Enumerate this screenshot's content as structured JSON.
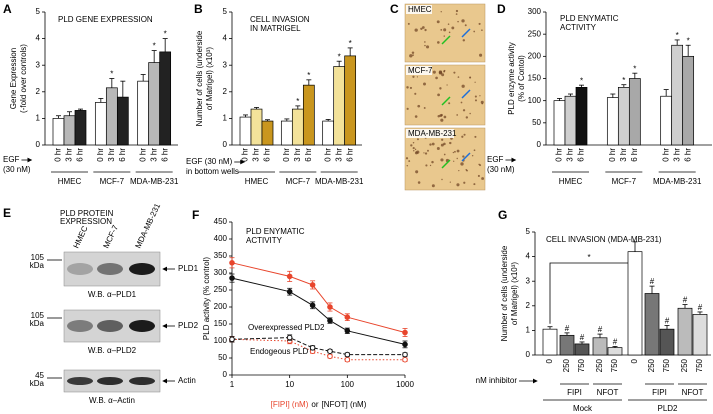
{
  "chart_data": [
    {
      "type": "bar",
      "panel": "A",
      "title": [
        "PLD GENE EXPRESSION"
      ],
      "y_label": [
        "Gene Expression",
        "(-fold over controls)"
      ],
      "x_label": [
        "EGF",
        "(30 nM)"
      ],
      "categories": [
        "HMEC",
        "MCF-7",
        "MDA-MB-231"
      ],
      "series": [
        {
          "name": "0 hr",
          "color": "#ffffff",
          "values": [
            1.0,
            1.6,
            2.4
          ],
          "errors": [
            0.1,
            0.15,
            0.25
          ],
          "significance": [
            null,
            null,
            null
          ]
        },
        {
          "name": "3 hr",
          "color": "#b8b8b8",
          "values": [
            1.1,
            2.15,
            3.1
          ],
          "errors": [
            0.15,
            0.35,
            0.45
          ],
          "significance": [
            null,
            "*",
            "*"
          ]
        },
        {
          "name": "6 hr",
          "color": "#222222",
          "values": [
            1.3,
            1.8,
            3.5
          ],
          "errors": [
            0.05,
            0.6,
            0.5
          ],
          "significance": [
            null,
            null,
            "*"
          ]
        }
      ],
      "ylim": [
        0,
        5
      ],
      "yticks": [
        0,
        1,
        2,
        3,
        4,
        5
      ]
    },
    {
      "type": "bar",
      "panel": "B",
      "title": [
        "CELL INVASION",
        "IN MATRIGEL"
      ],
      "y_label": [
        "Number of cells (underside",
        "of Matrigel) (x10³)"
      ],
      "x_label": [
        "EGF (30 nM)",
        "in bottom wells"
      ],
      "categories": [
        "HMEC",
        "MCF-7",
        "MDA-MB-231"
      ],
      "series": [
        {
          "name": "0 hr",
          "color": "#ffffff",
          "values": [
            1.05,
            0.9,
            0.9
          ],
          "errors": [
            0.08,
            0.08,
            0.06
          ],
          "significance": [
            null,
            null,
            null
          ]
        },
        {
          "name": "3 hr",
          "color": "#f3e29a",
          "values": [
            1.35,
            1.35,
            2.95
          ],
          "errors": [
            0.06,
            0.12,
            0.2
          ],
          "significance": [
            null,
            "*",
            "*"
          ]
        },
        {
          "name": "6 hr",
          "color": "#c9961e",
          "values": [
            0.9,
            2.25,
            3.35
          ],
          "errors": [
            0.05,
            0.2,
            0.3
          ],
          "significance": [
            null,
            "*",
            "*"
          ]
        }
      ],
      "ylim": [
        0,
        5
      ],
      "yticks": [
        0,
        1,
        2,
        3,
        4,
        5
      ]
    },
    {
      "type": "image",
      "panel": "C",
      "images": [
        "HMEC",
        "MCF-7",
        "MDA-MB-231"
      ]
    },
    {
      "type": "bar",
      "panel": "D",
      "title": [
        "PLD ENYMATIC",
        "ACTIVITY"
      ],
      "y_label": [
        "PLD enzyme activity",
        "(% of Contol)"
      ],
      "x_label": [
        "EGF",
        "(30 nM)"
      ],
      "categories": [
        "HMEC",
        "MCF-7",
        "MDA-MB-231"
      ],
      "series": [
        {
          "name": "0 hr",
          "color": "#ffffff",
          "values": [
            100,
            107,
            110
          ],
          "errors": [
            5,
            8,
            15
          ],
          "significance": [
            null,
            null,
            null
          ]
        },
        {
          "name": "3 hr",
          "color": "#cfcfcf",
          "values": [
            110,
            130,
            225
          ],
          "errors": [
            5,
            6,
            12
          ],
          "significance": [
            null,
            "*",
            "*"
          ]
        },
        {
          "name": "6 hr",
          "colors": [
            "#111111",
            "#a8a8a8",
            "#a8a8a8"
          ],
          "values": [
            130,
            150,
            200
          ],
          "errors": [
            5,
            12,
            25
          ],
          "significance": [
            "*",
            "*",
            "*"
          ]
        }
      ],
      "ylim": [
        0,
        300
      ],
      "yticks": [
        0,
        50,
        100,
        150,
        200,
        250,
        300
      ]
    },
    {
      "type": "blot",
      "panel": "E",
      "title": [
        "PLD PROTEIN",
        "EXPRESSION"
      ],
      "lanes": [
        "HMEC",
        "MCF-7",
        "MDA-MB-231"
      ],
      "blots": [
        {
          "marker": "105",
          "unit": "kDa",
          "target": "PLD1",
          "caption": "W.B. α–PLD1"
        },
        {
          "marker": "105",
          "unit": "kDa",
          "target": "PLD2",
          "caption": "W.B. α–PLD2"
        },
        {
          "marker": "45",
          "unit": "kDa",
          "target": "Actin",
          "caption": "W.B. α–Actin"
        }
      ]
    },
    {
      "type": "line",
      "panel": "F",
      "title": [
        "PLD ENYMATIC",
        "ACTIVITY"
      ],
      "y_label": [
        "PLD activity (% control)"
      ],
      "x_label": [
        "[FIPI] (nM)",
        "or",
        "[NFOT] (nM)"
      ],
      "x_label_colors": [
        "#e8452c",
        "#000000",
        "#000000"
      ],
      "annotations": [
        "Overexpressed PLD2",
        "Endogeous PLD"
      ],
      "log_x": true,
      "x": [
        1,
        10,
        25,
        50,
        100,
        1000
      ],
      "series": [
        {
          "color": "#e8452c",
          "marker": "filled",
          "dash": "solid",
          "values": [
            330,
            290,
            265,
            200,
            170,
            125
          ],
          "errors": [
            15,
            15,
            12,
            12,
            10,
            12
          ]
        },
        {
          "color": "#111111",
          "marker": "filled",
          "dash": "solid",
          "values": [
            285,
            245,
            205,
            160,
            130,
            90
          ],
          "errors": [
            12,
            10,
            10,
            8,
            8,
            10
          ]
        },
        {
          "color": "#e8452c",
          "marker": "open",
          "dash": "dotted",
          "values": [
            105,
            100,
            70,
            55,
            45,
            45
          ],
          "errors": [
            8,
            8,
            6,
            5,
            5,
            5
          ]
        },
        {
          "color": "#111111",
          "marker": "open",
          "dash": "dashed",
          "values": [
            105,
            110,
            80,
            70,
            60,
            60
          ],
          "errors": [
            8,
            8,
            6,
            5,
            5,
            5
          ]
        }
      ],
      "xlim": [
        1,
        1000
      ],
      "xticks": [
        1,
        10,
        100,
        1000
      ],
      "ylim": [
        0,
        450
      ],
      "yticks": [
        0,
        50,
        100,
        150,
        200,
        250,
        300,
        350,
        400,
        450
      ]
    },
    {
      "type": "bar",
      "panel": "G",
      "title": [
        "CELL INVASION (MDA-MB-231)"
      ],
      "y_label": [
        "Number of cells (underside",
        "of Matrigel) (x10³)"
      ],
      "x_label": "nM inhibitor",
      "categories": [
        "0",
        "250",
        "750",
        "250",
        "750",
        "0",
        "250",
        "750",
        "250",
        "750"
      ],
      "values": [
        1.05,
        0.8,
        0.45,
        0.7,
        0.3,
        4.2,
        2.5,
        1.05,
        1.9,
        1.65
      ],
      "errors": [
        0.1,
        0.1,
        0.08,
        0.15,
        0.05,
        0.4,
        0.3,
        0.15,
        0.15,
        0.1
      ],
      "colors": [
        "#ffffff",
        "#777777",
        "#555555",
        "#bbbbbb",
        "#dddddd",
        "#ffffff",
        "#777777",
        "#555555",
        "#bbbbbb",
        "#dddddd"
      ],
      "significance": [
        null,
        "#",
        "#",
        "#",
        "#",
        null,
        "#",
        "#",
        "#",
        "#"
      ],
      "groups": [
        "Mock",
        "PLD2"
      ],
      "inhibitors": [
        "FIPI",
        "NFOT",
        "FIPI",
        "NFOT"
      ],
      "bracket_label": "*",
      "ylim": [
        0,
        5
      ],
      "yticks": [
        0,
        1,
        2,
        3,
        4,
        5
      ]
    }
  ]
}
